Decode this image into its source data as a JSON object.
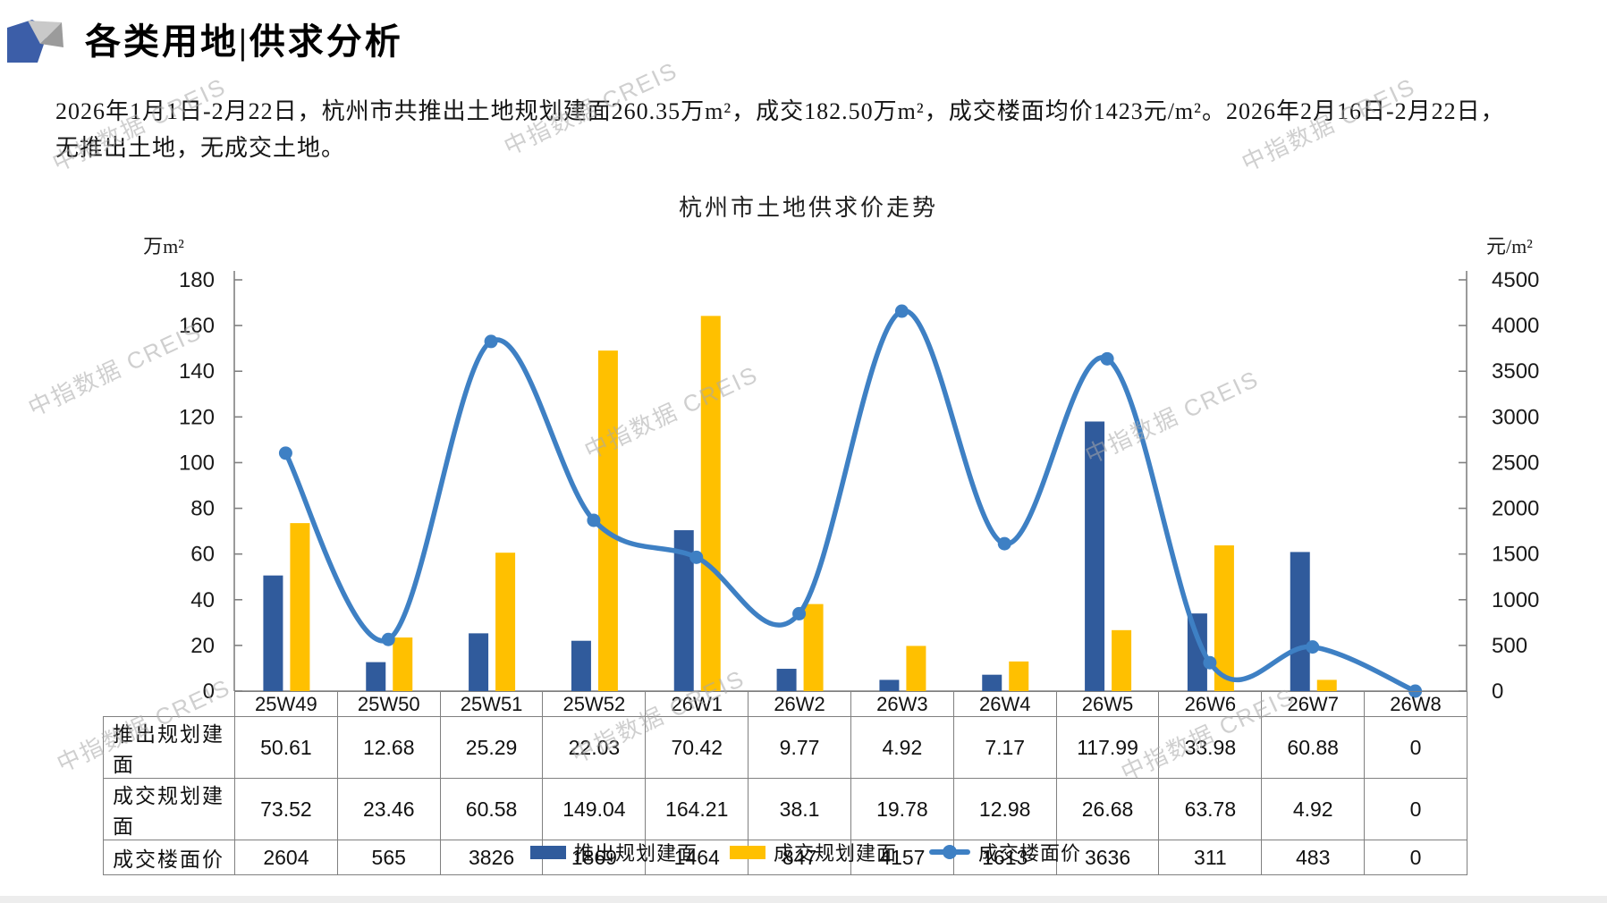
{
  "header": {
    "title": "各类用地|供求分析"
  },
  "summary": {
    "line1": "2026年1月1日-2月22日，杭州市共推出土地规划建面260.35万m²，成交182.50万m²，成交楼面均价1423元/m²。2026年2月16日-2月22日，",
    "line2": "无推出土地，无成交土地。"
  },
  "chart_data": {
    "type": "bar+line combo",
    "title": "杭州市土地供求价走势",
    "categories": [
      "25W49",
      "25W50",
      "25W51",
      "25W52",
      "26W1",
      "26W2",
      "26W3",
      "26W4",
      "26W5",
      "26W6",
      "26W7",
      "26W8"
    ],
    "series": [
      {
        "name": "推出规划建面",
        "type": "bar",
        "axis": "left",
        "color": "#305B9C",
        "values": [
          50.61,
          12.68,
          25.29,
          22.03,
          70.42,
          9.77,
          4.92,
          7.17,
          117.99,
          33.98,
          60.88,
          0
        ]
      },
      {
        "name": "成交规划建面",
        "type": "bar",
        "axis": "left",
        "color": "#FFC000",
        "values": [
          73.52,
          23.46,
          60.58,
          149.04,
          164.21,
          38.1,
          19.78,
          12.98,
          26.68,
          63.78,
          4.92,
          0
        ]
      },
      {
        "name": "成交楼面价",
        "type": "line",
        "axis": "right",
        "color": "#3E80C4",
        "values": [
          2604,
          565,
          3826,
          1869,
          1464,
          847,
          4157,
          1613,
          3636,
          311,
          483,
          0
        ]
      }
    ],
    "left_axis": {
      "label": "万m²",
      "min": 0,
      "max": 180,
      "step": 20
    },
    "right_axis": {
      "label": "元/m²",
      "min": 0,
      "max": 4500,
      "step": 500
    },
    "grid": false,
    "legend_position": "bottom",
    "axis_color": "#808080"
  },
  "table": {
    "rows": [
      {
        "label": "推出规划建面",
        "values": [
          "50.61",
          "12.68",
          "25.29",
          "22.03",
          "70.42",
          "9.77",
          "4.92",
          "7.17",
          "117.99",
          "33.98",
          "60.88",
          "0"
        ]
      },
      {
        "label": "成交规划建面",
        "values": [
          "73.52",
          "23.46",
          "60.58",
          "149.04",
          "164.21",
          "38.1",
          "19.78",
          "12.98",
          "26.68",
          "63.78",
          "4.92",
          "0"
        ]
      },
      {
        "label": "成交楼面价",
        "values": [
          "2604",
          "565",
          "3826",
          "1869",
          "1464",
          "847",
          "4157",
          "1613",
          "3636",
          "311",
          "483",
          "0"
        ]
      }
    ]
  },
  "watermark": {
    "text": "中指数据 CREIS"
  }
}
